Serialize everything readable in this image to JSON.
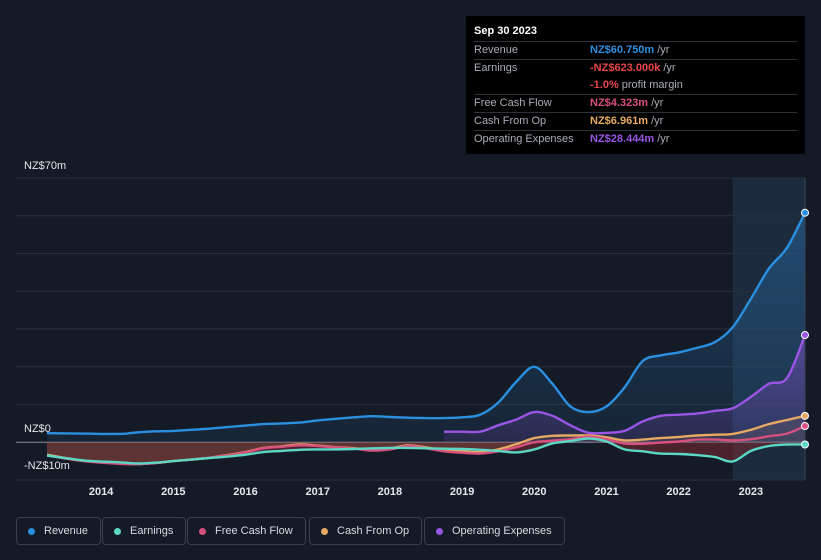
{
  "tooltip": {
    "date": "Sep 30 2023",
    "rows": [
      {
        "label": "Revenue",
        "value": "NZ$60.750m",
        "unit": "/yr",
        "color": "#2b8fe0"
      },
      {
        "label": "Earnings",
        "value": "-NZ$623.000k",
        "unit": "/yr",
        "color": "#e8454a"
      },
      {
        "label": "",
        "value": "-1.0%",
        "unit": "profit margin",
        "color": "#e8454a"
      },
      {
        "label": "Free Cash Flow",
        "value": "NZ$4.323m",
        "unit": "/yr",
        "color": "#d8507e"
      },
      {
        "label": "Cash From Op",
        "value": "NZ$6.961m",
        "unit": "/yr",
        "color": "#e6a964"
      },
      {
        "label": "Operating Expenses",
        "value": "NZ$28.444m",
        "unit": "/yr",
        "color": "#9a55e4"
      }
    ]
  },
  "legend": [
    {
      "label": "Revenue",
      "color": "#2b8fe0"
    },
    {
      "label": "Earnings",
      "color": "#5ad8c4"
    },
    {
      "label": "Free Cash Flow",
      "color": "#d8507e"
    },
    {
      "label": "Cash From Op",
      "color": "#e6a964"
    },
    {
      "label": "Operating Expenses",
      "color": "#9a55e4"
    }
  ],
  "chart_data": {
    "type": "line",
    "title": "",
    "xlabel": "",
    "ylabel": "",
    "ylim": [
      -10,
      70
    ],
    "y_tick_labels": [
      "NZ$70m",
      "NZ$0",
      "-NZ$10m"
    ],
    "xlim": [
      2013.25,
      2023.75
    ],
    "x_tick_labels": [
      "2014",
      "2015",
      "2016",
      "2017",
      "2018",
      "2019",
      "2020",
      "2021",
      "2022",
      "2023"
    ],
    "highlight_start": 2022.75,
    "series": [
      {
        "name": "Revenue",
        "color": "#2b8fe0",
        "x": [
          2013.25,
          2013.75,
          2014.25,
          2014.5,
          2014.75,
          2015.0,
          2015.25,
          2015.5,
          2015.75,
          2016.0,
          2016.25,
          2016.5,
          2016.75,
          2017.0,
          2017.25,
          2017.5,
          2017.75,
          2018.0,
          2018.25,
          2018.5,
          2018.75,
          2019.0,
          2019.25,
          2019.5,
          2019.75,
          2020.0,
          2020.25,
          2020.5,
          2020.75,
          2021.0,
          2021.25,
          2021.5,
          2021.75,
          2022.0,
          2022.25,
          2022.5,
          2022.75,
          2023.0,
          2023.25,
          2023.5,
          2023.75
        ],
        "y": [
          2.4,
          2.3,
          2.2,
          2.6,
          2.9,
          3.0,
          3.3,
          3.6,
          4.0,
          4.4,
          4.8,
          5.0,
          5.2,
          5.8,
          6.2,
          6.6,
          6.9,
          6.7,
          6.5,
          6.4,
          6.4,
          6.6,
          7.3,
          10.5,
          16.0,
          20.0,
          15.5,
          9.5,
          8.0,
          9.5,
          14.5,
          21.5,
          23.0,
          23.8,
          25.0,
          26.5,
          30.5,
          38.0,
          46.0,
          51.5,
          60.8
        ]
      },
      {
        "name": "Earnings",
        "color": "#5ad8c4",
        "x": [
          2013.25,
          2013.75,
          2014.25,
          2014.5,
          2014.75,
          2015.0,
          2015.25,
          2015.5,
          2015.75,
          2016.0,
          2016.25,
          2016.5,
          2016.75,
          2017.0,
          2017.25,
          2017.5,
          2017.75,
          2018.0,
          2018.25,
          2018.5,
          2018.75,
          2019.0,
          2019.25,
          2019.5,
          2019.75,
          2020.0,
          2020.25,
          2020.5,
          2020.75,
          2021.0,
          2021.25,
          2021.5,
          2021.75,
          2022.0,
          2022.25,
          2022.5,
          2022.75,
          2023.0,
          2023.25,
          2023.5,
          2023.75
        ],
        "y": [
          -3.5,
          -4.8,
          -5.3,
          -5.6,
          -5.4,
          -5.0,
          -4.6,
          -4.2,
          -3.8,
          -3.3,
          -2.6,
          -2.3,
          -2.0,
          -1.9,
          -1.9,
          -1.8,
          -1.6,
          -1.5,
          -1.5,
          -1.6,
          -1.7,
          -1.8,
          -2.0,
          -2.3,
          -2.7,
          -1.9,
          -0.3,
          0.3,
          1.0,
          0.2,
          -1.9,
          -2.4,
          -3.0,
          -3.1,
          -3.4,
          -3.9,
          -5.1,
          -2.3,
          -1.0,
          -0.6,
          -0.6
        ]
      },
      {
        "name": "Free Cash Flow",
        "color": "#d8507e",
        "x": [
          2013.25,
          2013.75,
          2014.25,
          2014.5,
          2014.75,
          2015.0,
          2015.25,
          2015.5,
          2015.75,
          2016.0,
          2016.25,
          2016.5,
          2016.75,
          2017.0,
          2017.25,
          2017.5,
          2017.75,
          2018.0,
          2018.25,
          2018.5,
          2018.75,
          2019.0,
          2019.25,
          2019.5,
          2019.75,
          2020.0,
          2020.25,
          2020.5,
          2020.75,
          2021.0,
          2021.25,
          2021.5,
          2021.75,
          2022.0,
          2022.25,
          2022.5,
          2022.75,
          2023.0,
          2023.25,
          2023.5,
          2023.75
        ],
        "y": [
          -3.5,
          -5.0,
          -5.7,
          -5.8,
          -5.5,
          -5.0,
          -4.6,
          -4.1,
          -3.5,
          -2.7,
          -1.6,
          -1.2,
          -0.8,
          -1.0,
          -1.4,
          -1.7,
          -2.2,
          -1.9,
          -1.0,
          -1.6,
          -2.4,
          -2.8,
          -3.0,
          -2.4,
          -1.3,
          0.0,
          0.4,
          0.8,
          1.5,
          0.8,
          -0.3,
          -0.4,
          -0.1,
          0.2,
          0.7,
          0.7,
          0.5,
          0.8,
          1.6,
          2.3,
          4.3
        ]
      },
      {
        "name": "Cash From Op",
        "color": "#e6a964",
        "x": [
          2013.25,
          2013.75,
          2014.25,
          2014.5,
          2014.75,
          2015.0,
          2015.25,
          2015.5,
          2015.75,
          2016.0,
          2016.25,
          2016.5,
          2016.75,
          2017.0,
          2017.25,
          2017.5,
          2017.75,
          2018.0,
          2018.25,
          2018.5,
          2018.75,
          2019.0,
          2019.25,
          2019.5,
          2019.75,
          2020.0,
          2020.25,
          2020.5,
          2020.75,
          2021.0,
          2021.25,
          2021.5,
          2021.75,
          2022.0,
          2022.25,
          2022.5,
          2022.75,
          2023.0,
          2023.25,
          2023.5,
          2023.75
        ],
        "y": [
          -3.3,
          -4.9,
          -5.6,
          -5.8,
          -5.5,
          -5.0,
          -4.6,
          -4.1,
          -3.4,
          -2.6,
          -1.5,
          -1.1,
          -0.6,
          -0.9,
          -1.3,
          -1.6,
          -2.0,
          -1.7,
          -0.8,
          -1.4,
          -2.1,
          -2.4,
          -2.6,
          -1.9,
          -0.5,
          1.1,
          1.7,
          1.8,
          1.8,
          1.3,
          0.5,
          0.7,
          1.1,
          1.4,
          1.8,
          2.0,
          2.2,
          3.3,
          4.8,
          5.9,
          7.0
        ]
      },
      {
        "name": "Operating Expenses",
        "color": "#9a55e4",
        "x": [
          2018.75,
          2019.0,
          2019.25,
          2019.5,
          2019.75,
          2020.0,
          2020.25,
          2020.5,
          2020.75,
          2021.0,
          2021.25,
          2021.5,
          2021.75,
          2022.0,
          2022.25,
          2022.5,
          2022.75,
          2023.0,
          2023.25,
          2023.5,
          2023.75
        ],
        "y": [
          2.8,
          2.8,
          2.8,
          4.5,
          6.0,
          8.0,
          7.0,
          4.5,
          2.5,
          2.5,
          3.0,
          5.5,
          7.0,
          7.3,
          7.6,
          8.3,
          9.0,
          12.0,
          15.5,
          17.0,
          28.4
        ]
      }
    ]
  }
}
